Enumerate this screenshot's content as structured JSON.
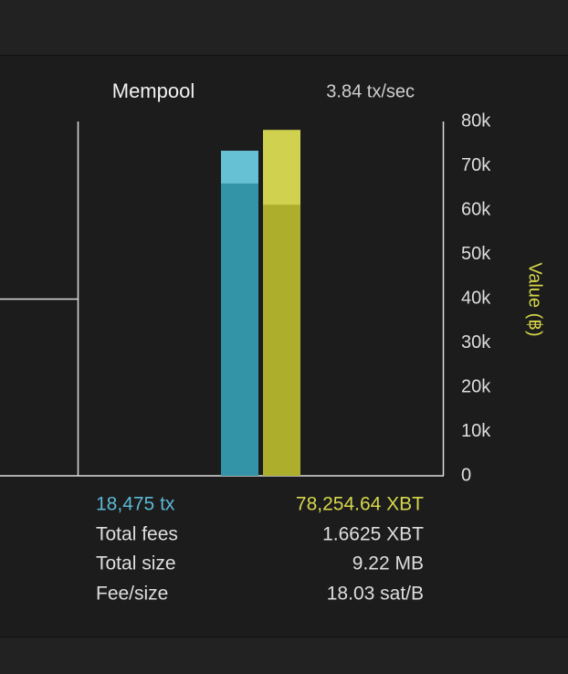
{
  "chart_data": {
    "type": "bar",
    "title": "Mempool",
    "subtitle": "3.84 tx/sec",
    "y_label": "Value (฿)",
    "ylim": [
      0,
      80000
    ],
    "yticks": [
      {
        "value": 0,
        "label": "0"
      },
      {
        "value": 10000,
        "label": "10k"
      },
      {
        "value": 20000,
        "label": "20k"
      },
      {
        "value": 30000,
        "label": "30k"
      },
      {
        "value": 40000,
        "label": "40k"
      },
      {
        "value": 50000,
        "label": "50k"
      },
      {
        "value": 60000,
        "label": "60k"
      },
      {
        "value": 70000,
        "label": "70k"
      },
      {
        "value": 80000,
        "label": "80k"
      }
    ],
    "series": [
      {
        "color": "#66c1d5",
        "inner_color": "#3394a7",
        "values": [
          73400,
          66000
        ]
      },
      {
        "color": "#d1d150",
        "inner_color": "#aeae2d",
        "values": [
          78100,
          61200
        ]
      }
    ]
  },
  "stats": {
    "rows": [
      [
        "18,475 tx",
        "78,254.64 XBT"
      ],
      [
        "Total fees",
        "1.6625 XBT"
      ],
      [
        "Total size",
        "9.22 MB"
      ],
      [
        "Fee/size",
        "18.03 sat/B"
      ]
    ]
  }
}
